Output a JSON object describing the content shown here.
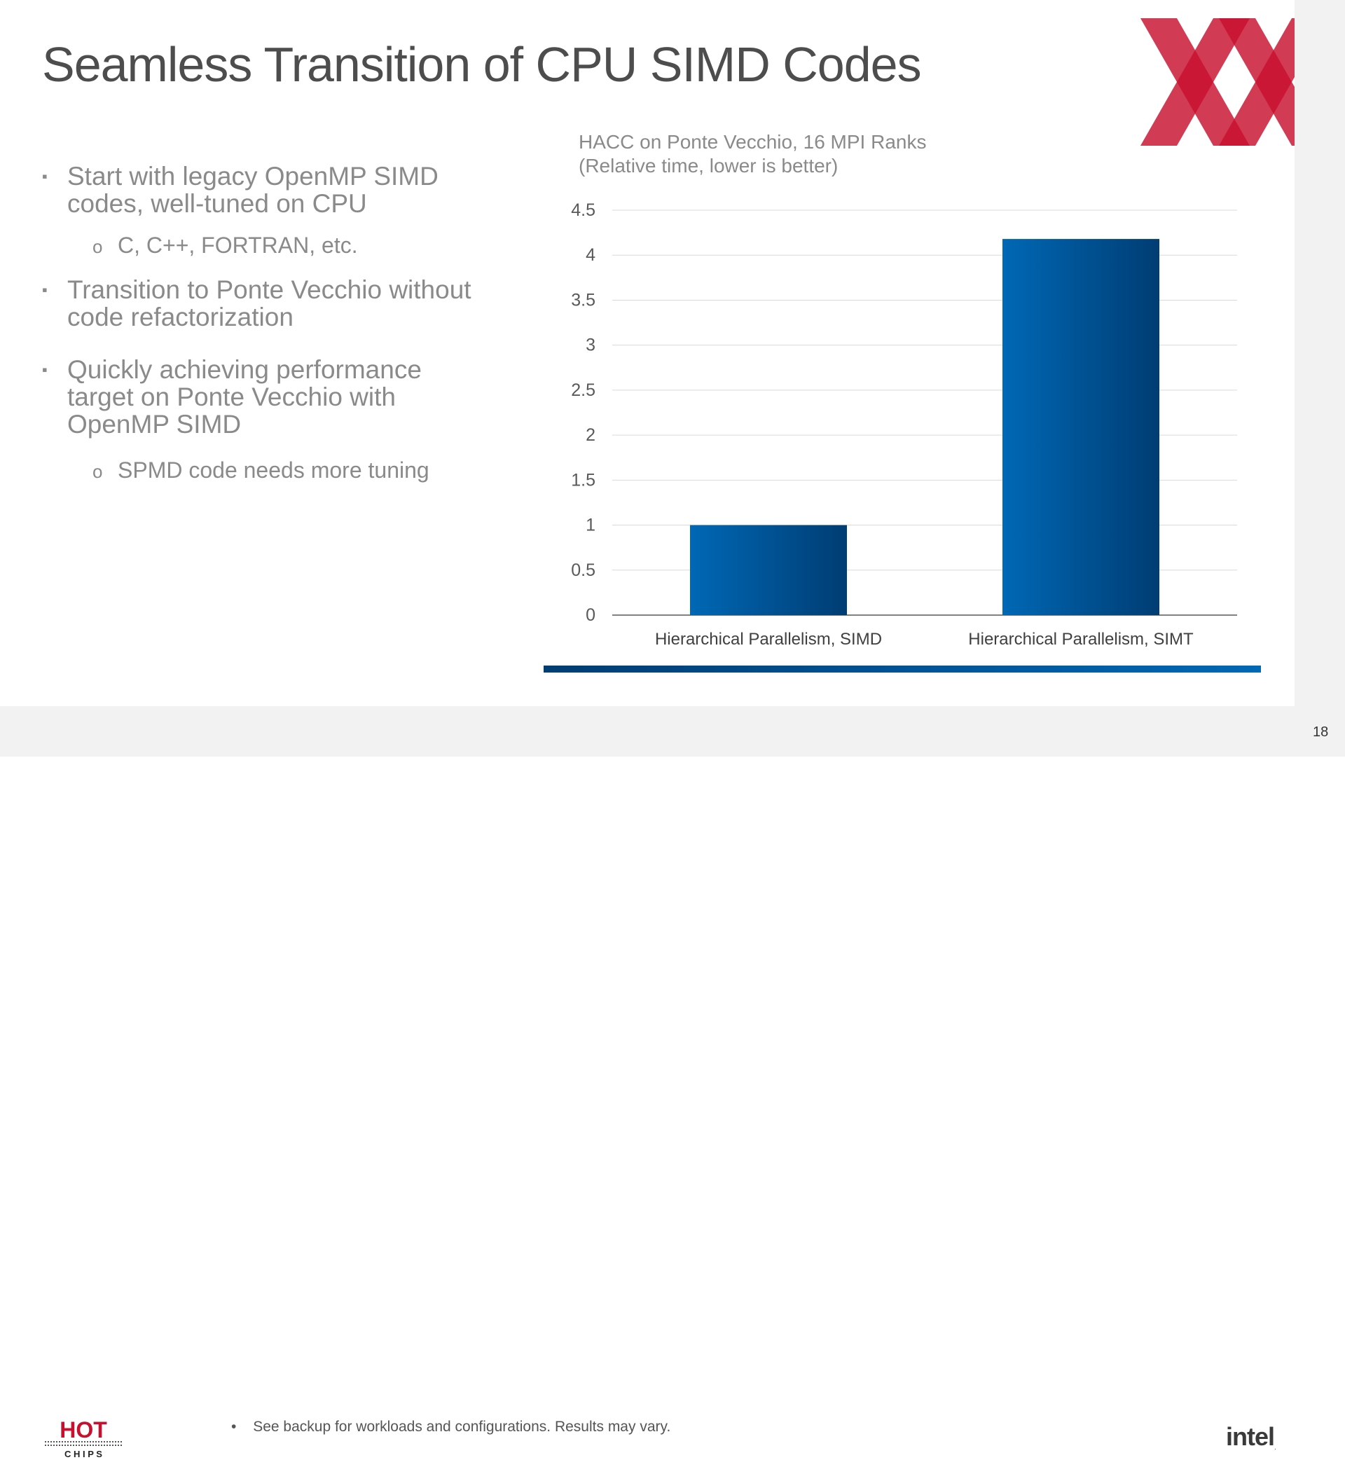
{
  "slide": {
    "title": "Seamless Transition of CPU SIMD Codes",
    "bullets": {
      "b1": "Start with legacy OpenMP SIMD codes, well-tuned on CPU",
      "b1_sub": "C, C++, FORTRAN, etc.",
      "b2": "Transition to Ponte Vecchio without code refactorization",
      "b3": "Quickly achieving performance target on Ponte Vecchio with OpenMP SIMD",
      "b3_sub": "SPMD code needs more tuning",
      "square_marker": "▪",
      "circle_marker": "o"
    },
    "footnote": "See backup for workloads and configurations. Results may vary.",
    "footnote_marker": "•",
    "page_number": "18",
    "logo_text": "intel",
    "logo_mark": ".",
    "hotchips_text": "HOT",
    "hotchips_subtext": "C H I P S",
    "colors": {
      "bar_dark": "#003d73",
      "bar_light": "#0068b5",
      "title": "#4d4d4d",
      "body_text": "#8a8a8a",
      "logo_red": "#c8102e"
    }
  },
  "chart_data": {
    "type": "bar",
    "title_line1": "HACC on Ponte Vecchio, 16 MPI Ranks",
    "title_line2": "(Relative time, lower is better)",
    "categories": [
      "Hierarchical Parallelism, SIMD",
      "Hierarchical Parallelism, SIMT"
    ],
    "values": [
      1,
      4.18
    ],
    "ylim": [
      0,
      4.5
    ],
    "yticks": [
      0,
      0.5,
      1,
      1.5,
      2,
      2.5,
      3,
      3.5,
      4,
      4.5
    ],
    "ytick_labels": [
      "0",
      "0.5",
      "1",
      "1.5",
      "2",
      "2.5",
      "3",
      "3.5",
      "4",
      "4.5"
    ],
    "grid": true,
    "legend": "none"
  }
}
